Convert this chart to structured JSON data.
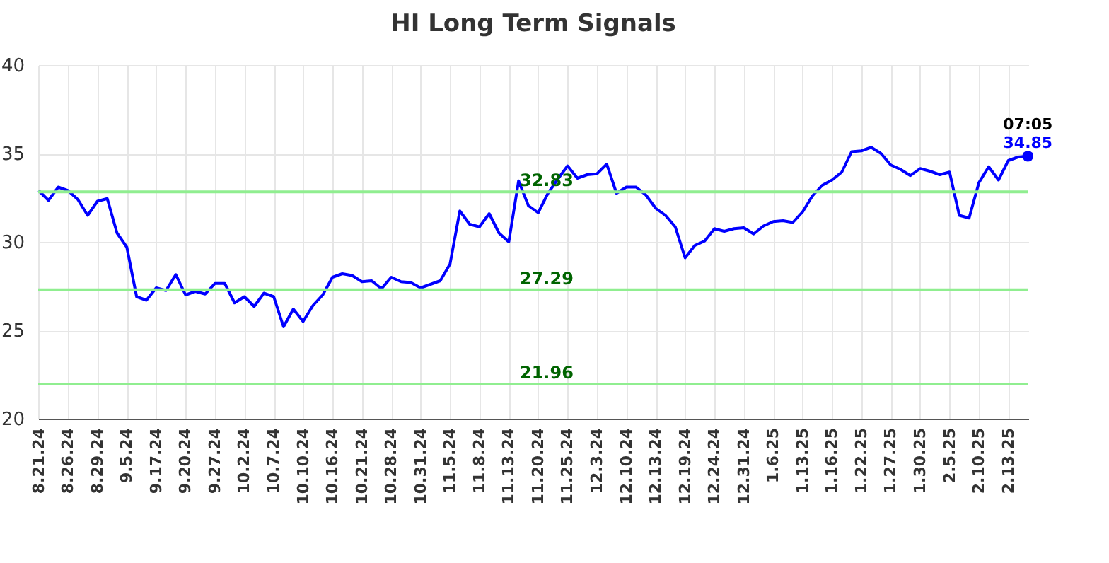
{
  "chart_data": {
    "type": "line",
    "title": "HI Long Term Signals",
    "categories": [
      "8.21.24",
      null,
      null,
      "8.26.24",
      null,
      null,
      "8.29.24",
      null,
      null,
      "9.5.24",
      null,
      null,
      "9.17.24",
      null,
      null,
      "9.20.24",
      null,
      null,
      "9.27.24",
      null,
      null,
      "10.2.24",
      null,
      null,
      "10.7.24",
      null,
      null,
      "10.10.24",
      null,
      null,
      "10.16.24",
      null,
      null,
      "10.21.24",
      null,
      null,
      "10.28.24",
      null,
      null,
      "10.31.24",
      null,
      null,
      "11.5.24",
      null,
      null,
      "11.8.24",
      null,
      null,
      "11.13.24",
      null,
      null,
      "11.20.24",
      null,
      null,
      "11.25.24",
      null,
      null,
      "12.3.24",
      null,
      null,
      "12.10.24",
      null,
      null,
      "12.13.24",
      null,
      null,
      "12.19.24",
      null,
      null,
      "12.24.24",
      null,
      null,
      "12.31.24",
      null,
      null,
      "1.6.25",
      null,
      null,
      "1.13.25",
      null,
      null,
      "1.16.25",
      null,
      null,
      "1.22.25",
      null,
      null,
      "1.27.25",
      null,
      null,
      "1.30.25",
      null,
      null,
      "2.5.25",
      null,
      null,
      "2.10.25",
      null,
      null,
      "2.13.25",
      null,
      null
    ],
    "series": [
      {
        "color": "#0000ff",
        "values": [
          32.9,
          32.35,
          33.1,
          32.9,
          32.4,
          31.5,
          32.3,
          32.45,
          30.5,
          29.7,
          26.9,
          26.7,
          27.4,
          27.25,
          28.15,
          27.0,
          27.2,
          27.05,
          27.65,
          27.65,
          26.55,
          26.9,
          26.35,
          27.1,
          26.9,
          25.2,
          26.2,
          25.5,
          26.4,
          27.0,
          28.0,
          28.2,
          28.1,
          27.75,
          27.8,
          27.35,
          28.0,
          27.75,
          27.7,
          27.4,
          27.6,
          27.8,
          28.75,
          31.75,
          31.0,
          30.85,
          31.6,
          30.5,
          30.0,
          33.45,
          32.05,
          31.65,
          32.75,
          33.55,
          34.3,
          33.6,
          33.8,
          33.85,
          34.4,
          32.75,
          33.1,
          33.1,
          32.65,
          31.9,
          31.5,
          30.85,
          29.1,
          29.8,
          30.05,
          30.75,
          30.6,
          30.75,
          30.8,
          30.45,
          30.9,
          31.15,
          31.2,
          31.1,
          31.7,
          32.6,
          33.2,
          33.5,
          33.95,
          35.1,
          35.15,
          35.35,
          35.0,
          34.35,
          34.1,
          33.75,
          34.15,
          34.0,
          33.8,
          33.95,
          31.5,
          31.35,
          33.35,
          34.25,
          33.5,
          34.6,
          34.8,
          34.85
        ]
      }
    ],
    "ylim": [
      20,
      40
    ],
    "yticks": [
      20,
      25,
      30,
      35,
      40
    ],
    "grid": true,
    "marker": "none",
    "line_style": "solid",
    "ref_lines": [
      {
        "axis": "y",
        "value": 32.83,
        "label": "32.83",
        "color": "#90ee90"
      },
      {
        "axis": "y",
        "value": 27.29,
        "label": "27.29",
        "color": "#90ee90"
      },
      {
        "axis": "y",
        "value": 21.96,
        "label": "21.96",
        "color": "#90ee90"
      }
    ],
    "annotations": [
      {
        "text": "07:05",
        "y": 34.85
      },
      {
        "text": "34.85",
        "y": 34.85
      }
    ]
  }
}
